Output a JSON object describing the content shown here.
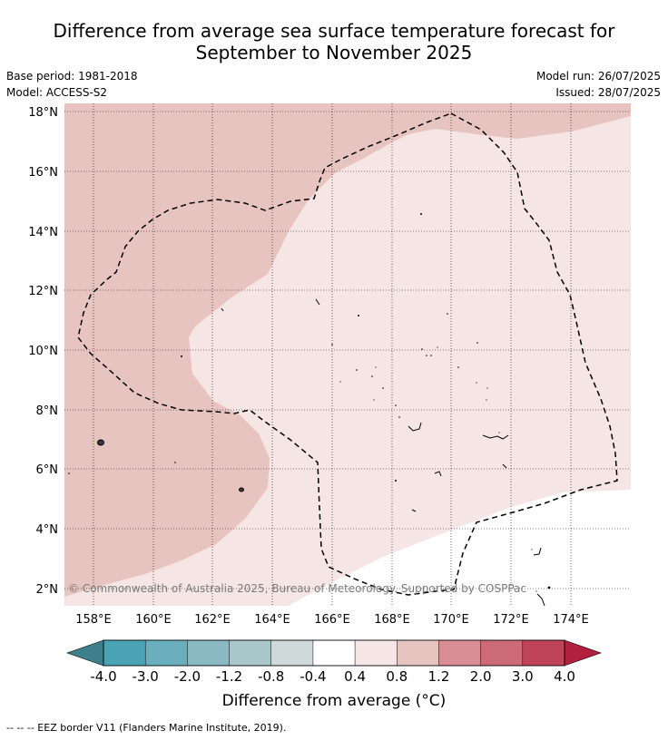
{
  "header": {
    "title_line1": "Difference from average sea surface temperature forecast for",
    "title_line2": "September to November 2025",
    "base_period": "Base period: 1981-2018",
    "model": "Model: ACCESS-S2",
    "model_run": "Model run: 26/07/2025",
    "issued": "Issued: 28/07/2025"
  },
  "map": {
    "lon_labels": [
      "158°E",
      "160°E",
      "162°E",
      "164°E",
      "166°E",
      "168°E",
      "170°E",
      "172°E",
      "174°E"
    ],
    "lat_labels": [
      "18°N",
      "16°N",
      "14°N",
      "12°N",
      "10°N",
      "8°N",
      "6°N",
      "4°N",
      "2°N"
    ],
    "lon_range": [
      157.0,
      176.0
    ],
    "lat_range": [
      1.4,
      18.3
    ],
    "copyright": "© Commonwealth of Australia 2025, Bureau of Meteorology. Supported by COSPPac"
  },
  "colorbar": {
    "ticks": [
      "-4.0",
      "-3.0",
      "-2.0",
      "-1.2",
      "-0.8",
      "-0.4",
      "0.4",
      "0.8",
      "1.2",
      "2.0",
      "3.0",
      "4.0"
    ],
    "colors": [
      "#4aa3b5",
      "#6aaebd",
      "#8ab8c3",
      "#a9c6ca",
      "#cfd9da",
      "#ffffff",
      "#f5e6e5",
      "#e8c4c0",
      "#d98e96",
      "#cc6a75",
      "#c04457"
    ],
    "under_color": "#3d7f8b",
    "over_color": "#b22040",
    "label": "Difference from average (°C)"
  },
  "footnote": "--  --  -- EEZ border V11 (Flanders Marine Institute, 2019)."
}
